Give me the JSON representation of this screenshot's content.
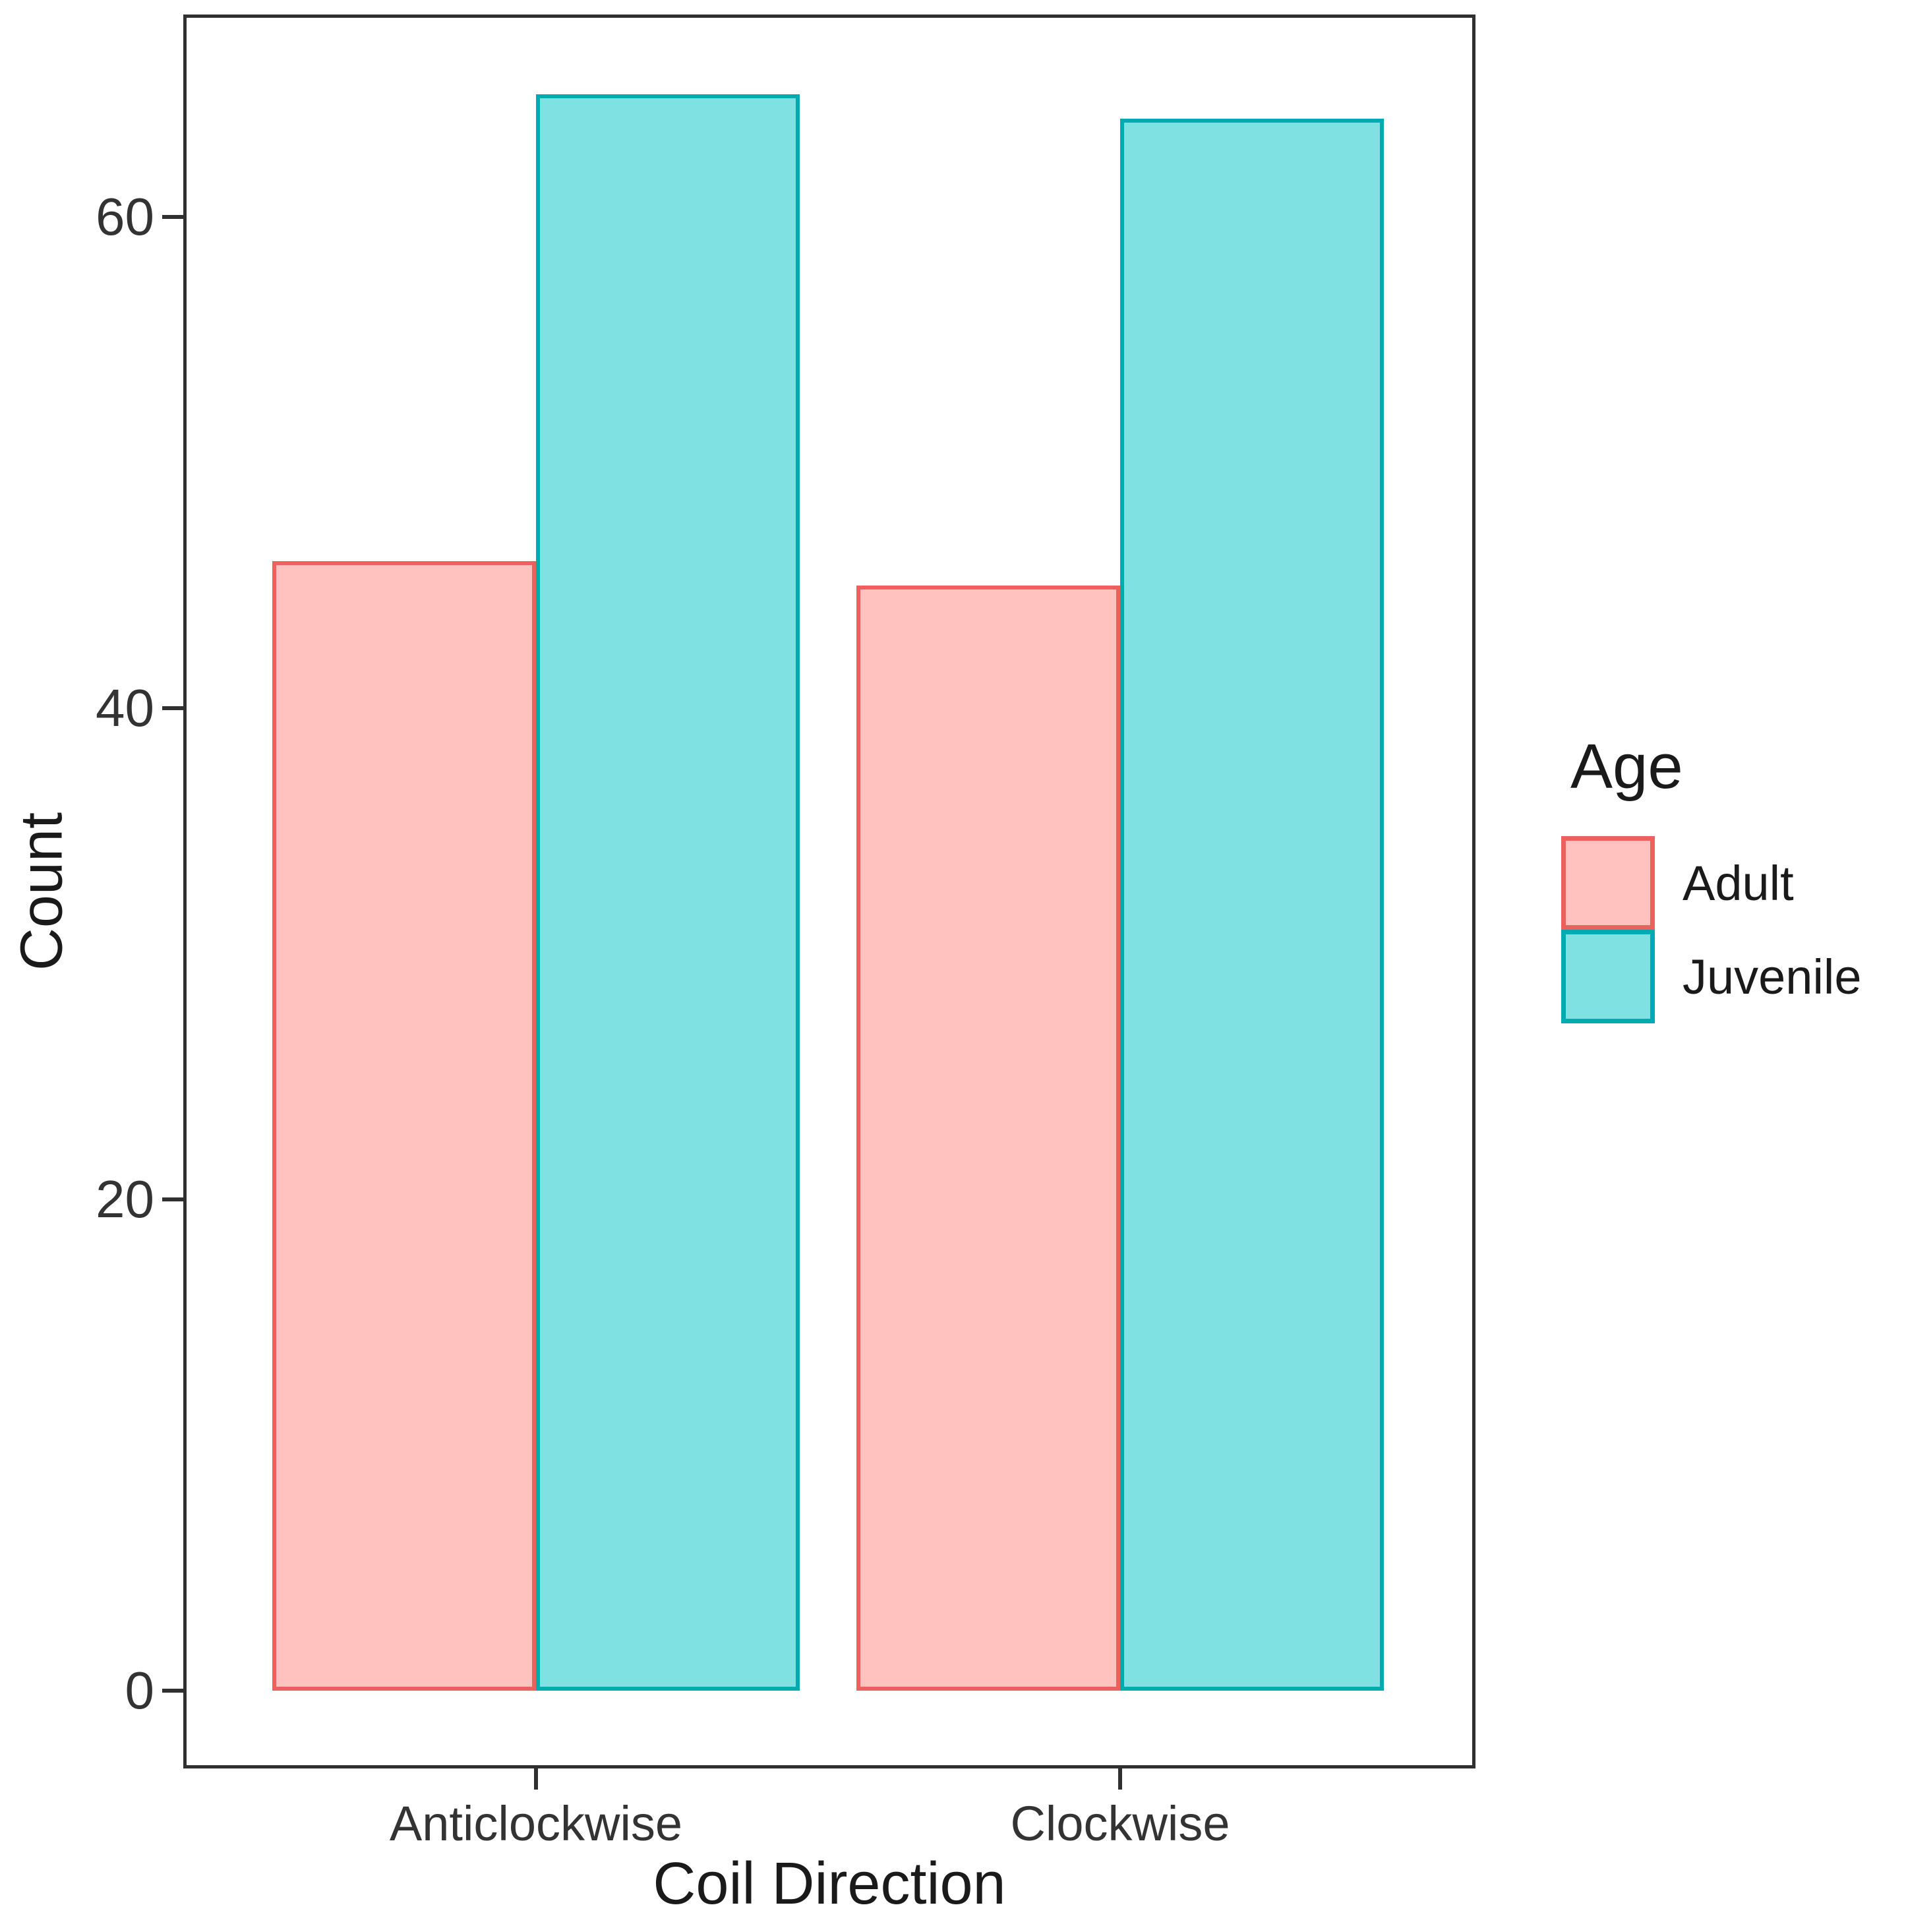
{
  "chart_data": {
    "type": "bar",
    "bar_grouping": "dodge",
    "title": "",
    "xlabel": "Coil Direction",
    "ylabel": "Count",
    "categories": [
      "Anticlockwise",
      "Clockwise"
    ],
    "series": [
      {
        "name": "Adult",
        "values": [
          46,
          45
        ],
        "fill": "#FFC2BE",
        "stroke": "#EC615E"
      },
      {
        "name": "Juvenile",
        "values": [
          65,
          64
        ],
        "fill": "#7FE1E2",
        "stroke": "#00ABB0"
      }
    ],
    "y_ticks": [
      0,
      20,
      40,
      60
    ],
    "ylim": [
      -3.2,
      68.2
    ],
    "grid": false,
    "legend_title": "Age",
    "legend_position": "right"
  },
  "colors": {
    "adult_fill": "#FFC2BE",
    "adult_stroke": "#EC615E",
    "juvenile_fill": "#7FE1E2",
    "juvenile_stroke": "#00ABB0",
    "panel_border": "#303030",
    "tick_text": "#333333",
    "title_text": "#1a1a1a",
    "background": "#ffffff"
  }
}
